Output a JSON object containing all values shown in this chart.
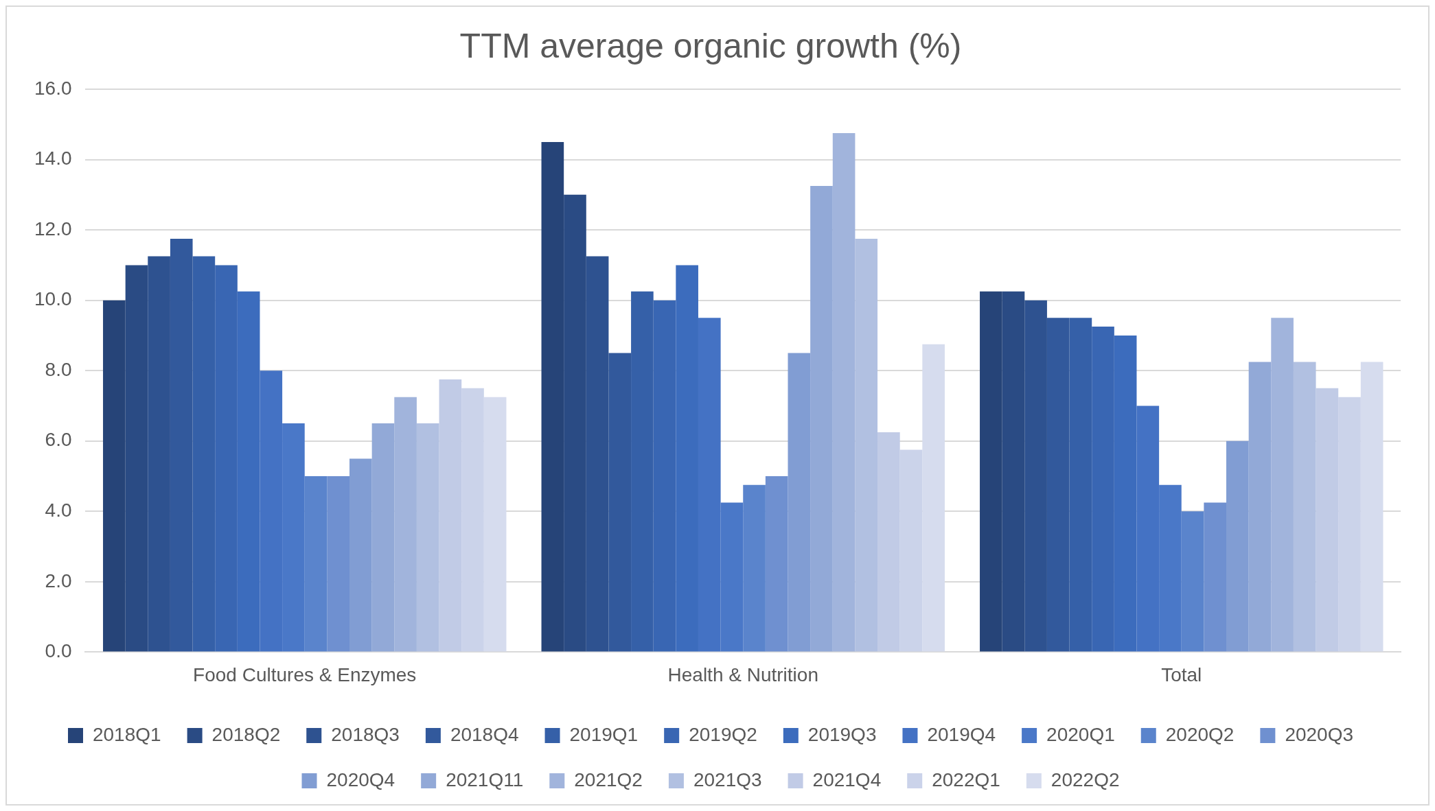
{
  "chart_data": {
    "type": "bar",
    "title": "TTM average organic growth (%)",
    "categories": [
      "Food Cultures & Enzymes",
      "Health & Nutrition",
      "Total"
    ],
    "ylim": [
      0,
      16
    ],
    "yticks": [
      {
        "value": 0,
        "label": "0.0"
      },
      {
        "value": 2,
        "label": "2.0"
      },
      {
        "value": 4,
        "label": "4.0"
      },
      {
        "value": 6,
        "label": "6.0"
      },
      {
        "value": 8,
        "label": "8.0"
      },
      {
        "value": 10,
        "label": "10.0"
      },
      {
        "value": 12,
        "label": "12.0"
      },
      {
        "value": 14,
        "label": "14.0"
      },
      {
        "value": 16,
        "label": "16.0"
      }
    ],
    "grid": "y",
    "legend": "bottom",
    "series": [
      {
        "name": "2018Q1",
        "color": "#264478",
        "values": [
          10.0,
          14.5,
          10.25
        ]
      },
      {
        "name": "2018Q2",
        "color": "#2a4b84",
        "values": [
          11.0,
          13.0,
          10.25
        ]
      },
      {
        "name": "2018Q3",
        "color": "#2e5290",
        "values": [
          11.25,
          11.25,
          10.0
        ]
      },
      {
        "name": "2018Q4",
        "color": "#32599c",
        "values": [
          11.75,
          8.5,
          9.5
        ]
      },
      {
        "name": "2019Q1",
        "color": "#3560a8",
        "values": [
          11.25,
          10.25,
          9.5
        ]
      },
      {
        "name": "2019Q2",
        "color": "#3966b3",
        "values": [
          11.0,
          10.0,
          9.25
        ]
      },
      {
        "name": "2019Q3",
        "color": "#3c6cbd",
        "values": [
          10.25,
          11.0,
          9.0
        ]
      },
      {
        "name": "2019Q4",
        "color": "#4472c4",
        "values": [
          8.0,
          9.5,
          7.0
        ]
      },
      {
        "name": "2020Q1",
        "color": "#4a78c8",
        "values": [
          6.5,
          4.25,
          4.75
        ]
      },
      {
        "name": "2020Q2",
        "color": "#5a84cc",
        "values": [
          5.0,
          4.75,
          4.0
        ]
      },
      {
        "name": "2020Q3",
        "color": "#6f90d0",
        "values": [
          5.0,
          5.0,
          4.25
        ]
      },
      {
        "name": "2020Q4",
        "color": "#819dd3",
        "values": [
          5.5,
          8.5,
          6.0
        ]
      },
      {
        "name": "2021Q11",
        "color": "#92a9d7",
        "values": [
          6.5,
          13.25,
          8.25
        ]
      },
      {
        "name": "2021Q2",
        "color": "#a1b4dc",
        "values": [
          7.25,
          14.75,
          9.5
        ]
      },
      {
        "name": "2021Q3",
        "color": "#b1c0e1",
        "values": [
          6.5,
          11.75,
          8.25
        ]
      },
      {
        "name": "2021Q4",
        "color": "#c1cbe6",
        "values": [
          7.75,
          6.25,
          7.5
        ]
      },
      {
        "name": "2022Q1",
        "color": "#cbd3ea",
        "values": [
          7.5,
          5.75,
          7.25
        ]
      },
      {
        "name": "2022Q2",
        "color": "#d6dcee",
        "values": [
          7.25,
          8.75,
          8.25
        ]
      }
    ]
  }
}
